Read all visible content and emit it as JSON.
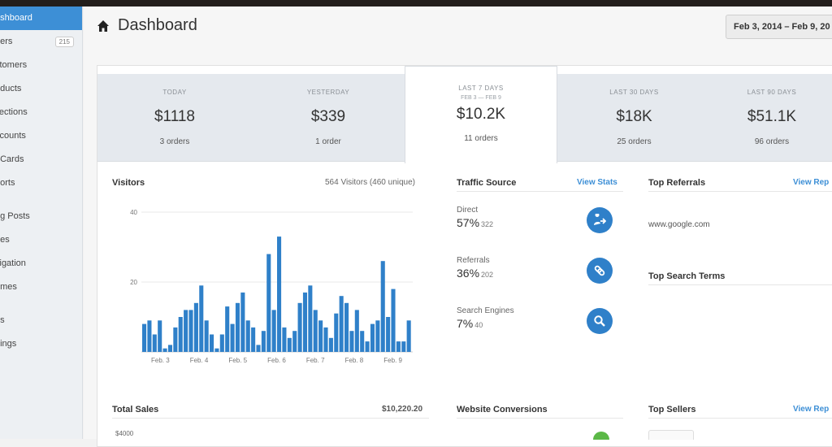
{
  "sidebar": {
    "items": [
      {
        "label": "ashboard",
        "active": true
      },
      {
        "label": "ders",
        "badge": "215"
      },
      {
        "label": "stomers"
      },
      {
        "label": "oducts"
      },
      {
        "label": "llections"
      },
      {
        "label": "scounts"
      },
      {
        "label": "t Cards"
      },
      {
        "label": "ports"
      },
      {
        "label": "og Posts"
      },
      {
        "label": "ges"
      },
      {
        "label": "vigation"
      },
      {
        "label": "emes"
      },
      {
        "label": "ps"
      },
      {
        "label": "ttings"
      }
    ]
  },
  "header": {
    "title": "Dashboard",
    "icon": "home-icon",
    "date_range": "Feb 3, 2014 – Feb 9, 20"
  },
  "stats": [
    {
      "label": "TODAY",
      "sub": "",
      "value": "$1118",
      "orders": "3 orders"
    },
    {
      "label": "YESTERDAY",
      "sub": "",
      "value": "$339",
      "orders": "1 order"
    },
    {
      "label": "LAST 7 DAYS",
      "sub": "FEB 3 — FEB 9",
      "value": "$10.2K",
      "orders": "11 orders",
      "active": true
    },
    {
      "label": "LAST 30 DAYS",
      "sub": "",
      "value": "$18K",
      "orders": "25 orders"
    },
    {
      "label": "LAST 90 DAYS",
      "sub": "",
      "value": "$51.1K",
      "orders": "96 orders"
    }
  ],
  "visitors": {
    "title": "Visitors",
    "summary": "564 Visitors (460 unique)"
  },
  "chart_data": {
    "type": "bar",
    "title": "",
    "xlabel": "",
    "ylabel": "",
    "ylim": [
      0,
      40
    ],
    "yticks": [
      "40",
      "20"
    ],
    "xticks": [
      "Feb. 3",
      "Feb. 4",
      "Feb. 5",
      "Feb. 6",
      "Feb. 7",
      "Feb. 8",
      "Feb. 9"
    ],
    "color": "#2f80c9",
    "grid": true,
    "values": [
      8,
      9,
      5,
      9,
      1,
      2,
      7,
      10,
      12,
      12,
      14,
      19,
      9,
      5,
      1,
      5,
      13,
      8,
      14,
      17,
      9,
      7,
      2,
      6,
      28,
      12,
      33,
      7,
      4,
      6,
      14,
      17,
      19,
      12,
      9,
      7,
      4,
      11,
      16,
      14,
      6,
      12,
      6,
      3,
      8,
      9,
      26,
      10,
      18,
      3,
      3,
      9
    ]
  },
  "traffic": {
    "title": "Traffic Source",
    "link": "View Stats",
    "items": [
      {
        "label": "Direct",
        "percent": "57%",
        "count": "322",
        "icon": "user-arrow-icon"
      },
      {
        "label": "Referrals",
        "percent": "36%",
        "count": "202",
        "icon": "link-icon"
      },
      {
        "label": "Search Engines",
        "percent": "7%",
        "count": "40",
        "icon": "search-icon"
      }
    ]
  },
  "referrals": {
    "title": "Top Referrals",
    "link": "View Rep",
    "items": [
      "www.google.com"
    ]
  },
  "search_terms": {
    "title": "Top Search Terms"
  },
  "sales": {
    "title": "Total Sales",
    "total": "$10,220.20",
    "ytick": "$4000"
  },
  "conversions": {
    "title": "Website Conversions"
  },
  "sellers": {
    "title": "Top Sellers",
    "link": "View Rep"
  },
  "colors": {
    "accent": "#3d8fd6",
    "bar": "#2f80c9",
    "sidebar_active": "#3d8fd6"
  }
}
